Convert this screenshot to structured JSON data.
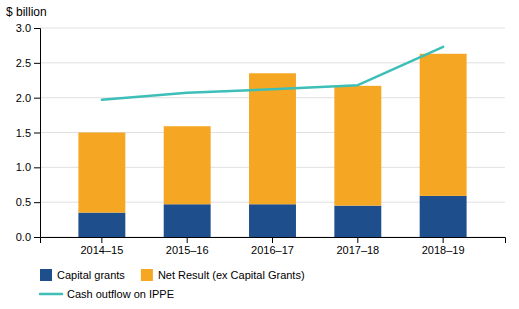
{
  "chart_data": {
    "type": "bar",
    "stacked": true,
    "ylabel": "$ billion",
    "categories": [
      "2014–15",
      "2015–16",
      "2016–17",
      "2017–18",
      "2018–19"
    ],
    "series": [
      {
        "name": "Capital grants",
        "color": "#1F4E8C",
        "values": [
          0.35,
          0.47,
          0.47,
          0.45,
          0.59
        ]
      },
      {
        "name": "Net Result (ex Capital Grants)",
        "color": "#F5A623",
        "values": [
          1.15,
          1.12,
          1.88,
          1.72,
          2.04
        ]
      },
      {
        "name": "Cash outflow on IPPE",
        "type": "line",
        "color": "#3DBFB8",
        "values": [
          1.97,
          2.07,
          2.12,
          2.18,
          2.73
        ]
      }
    ],
    "ylim": [
      0,
      3.0
    ],
    "yticks": [
      {
        "value": 0,
        "label": "0.0"
      },
      0.5,
      {
        "value": 1,
        "label": "1.0"
      },
      1.5,
      {
        "value": 2,
        "label": "2.0"
      },
      2.5,
      {
        "value": 3,
        "label": "3.0"
      }
    ],
    "grid": true,
    "legend": "bottom"
  }
}
